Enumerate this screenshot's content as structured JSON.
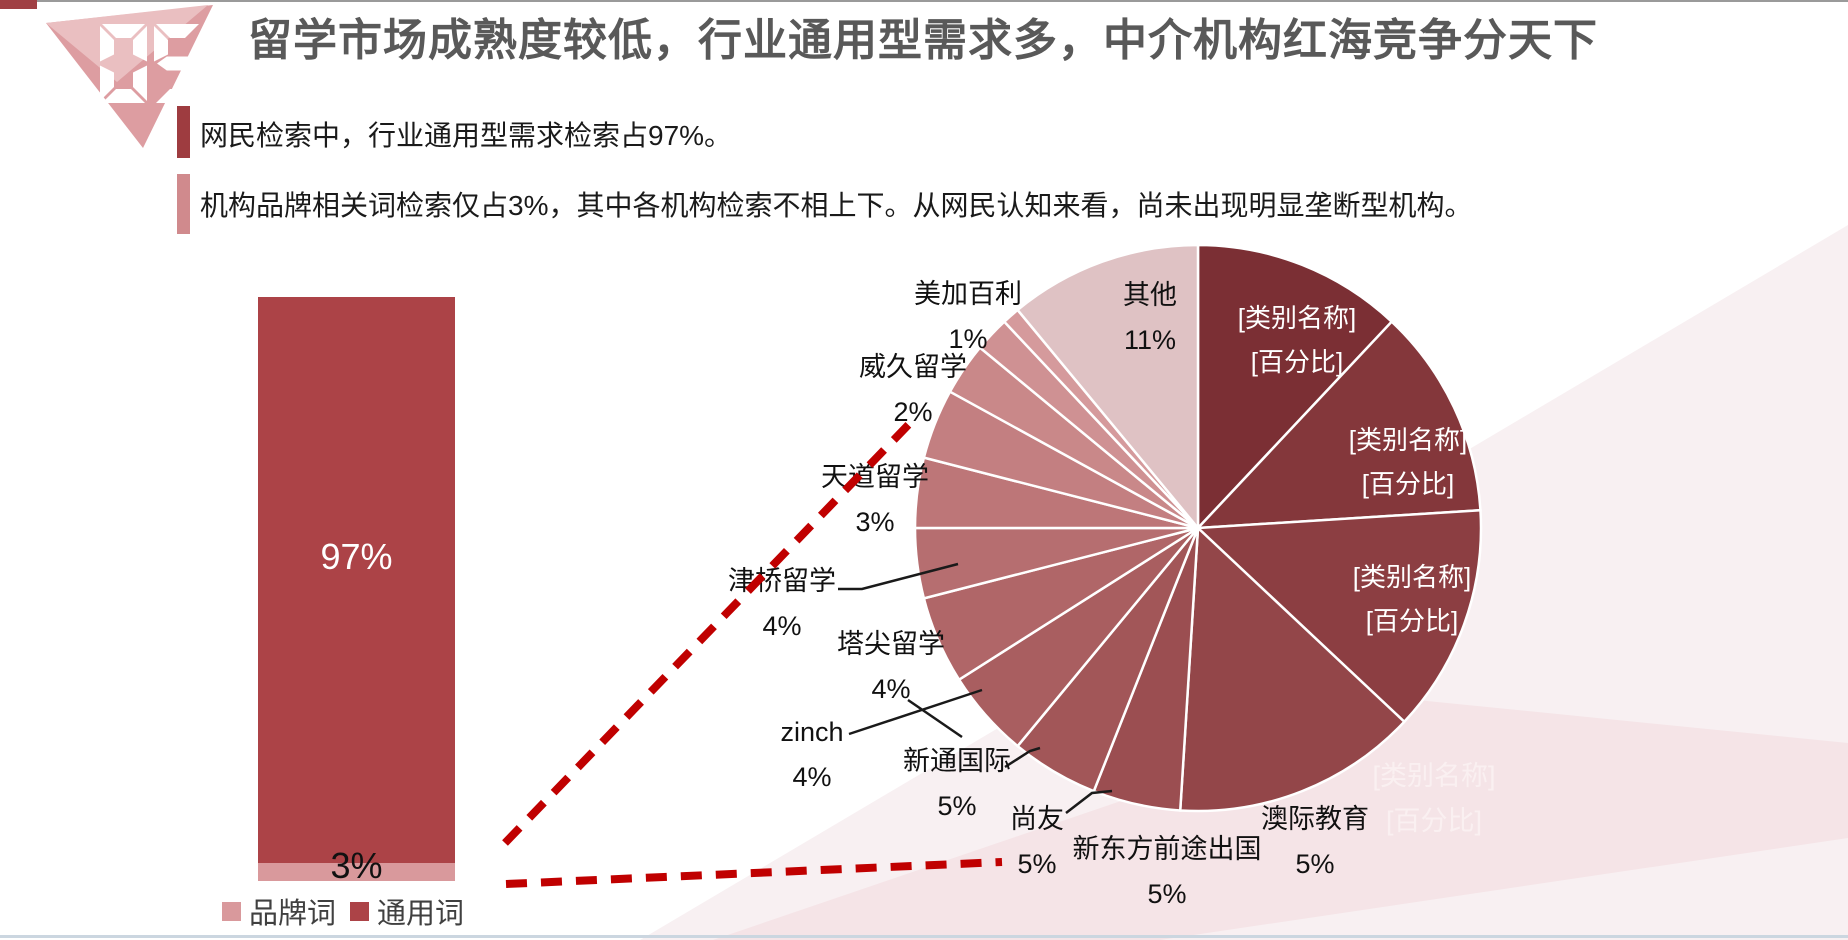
{
  "slide": {
    "number": "05",
    "title": "留学市场成熟度较低，行业通用型需求多，中介机构红海竞争分天下",
    "bullets": [
      {
        "text": "网民检索中，行业通用型需求检索占97%。"
      },
      {
        "text": "机构品牌相关词检索仅占3%，其中各机构检索不相上下。从网民认知来看，尚未出现明显垄断型机构。"
      }
    ]
  },
  "colors": {
    "top_border": "#9a9a9a",
    "corner_accent": "#a04044",
    "bottom_border": "#cbd6e0",
    "title_text": "#595959",
    "bullet_marker_1": "#9e3c40",
    "bullet_marker_2": "#d08a8d",
    "gem_body": "#dd9da1",
    "gem_facet": "#eabfc1",
    "gem_digits": "#ffffff",
    "callout_dash": "#c00000",
    "leader_line": "#1a1a1a",
    "bg_triangle_1": "#f8f0f2",
    "bg_triangle_2": "#f5e4e7",
    "faint_label_text": "#faf0f1"
  },
  "chart_data": [
    {
      "type": "bar",
      "title": "",
      "stacked": true,
      "categories": [
        ""
      ],
      "ylim": [
        0,
        100
      ],
      "grid": false,
      "legend_position": "bottom",
      "series": [
        {
          "name": "通用词",
          "values": [
            97
          ],
          "label": "97%",
          "color": "#ac4347"
        },
        {
          "name": "品牌词",
          "values": [
            3
          ],
          "label": "3%",
          "color": "#d9999c"
        }
      ],
      "legend": [
        {
          "label": "品牌词",
          "color": "#d9999c"
        },
        {
          "label": "通用词",
          "color": "#ac4347"
        }
      ]
    },
    {
      "type": "pie",
      "direction": "clockwise",
      "start_angle_deg": 0,
      "slices": [
        {
          "label": "[类别名称]",
          "value_label": "[百分比]",
          "value": 12,
          "color": "#7b2f34",
          "label_style": "inside"
        },
        {
          "label": "[类别名称]",
          "value_label": "[百分比]",
          "value": 12,
          "color": "#84373b",
          "label_style": "inside"
        },
        {
          "label": "[类别名称]",
          "value_label": "[百分比]",
          "value": 13,
          "color": "#8c3e42",
          "label_style": "inside"
        },
        {
          "label": "[类别名称]",
          "value_label": "[百分比]",
          "value": 14,
          "color": "#934649",
          "label_style": "faint"
        },
        {
          "label": "澳际教育",
          "value_label": "5%",
          "value": 5,
          "color": "#9b4e51",
          "label_style": "outside"
        },
        {
          "label": "新东方前途出国",
          "value_label": "5%",
          "value": 5,
          "color": "#a25658",
          "label_style": "outside"
        },
        {
          "label": "尚友",
          "value_label": "5%",
          "value": 5,
          "color": "#a95e60",
          "label_style": "outside"
        },
        {
          "label": "新通国际",
          "value_label": "5%",
          "value": 5,
          "color": "#b06668",
          "label_style": "outside"
        },
        {
          "label": "zinch",
          "value_label": "4%",
          "value": 4,
          "color": "#b66e70",
          "label_style": "outside"
        },
        {
          "label": "塔尖留学",
          "value_label": "4%",
          "value": 4,
          "color": "#bd7678",
          "label_style": "outside"
        },
        {
          "label": "津桥留学",
          "value_label": "4%",
          "value": 4,
          "color": "#c37f81",
          "label_style": "outside"
        },
        {
          "label": "天道留学",
          "value_label": "3%",
          "value": 3,
          "color": "#c98889",
          "label_style": "outside"
        },
        {
          "label": "威久留学",
          "value_label": "2%",
          "value": 2,
          "color": "#cf9193",
          "label_style": "outside"
        },
        {
          "label": "美加百利",
          "value_label": "1%",
          "value": 1,
          "color": "#d59a9c",
          "label_style": "outside"
        },
        {
          "label": "其他",
          "value_label": "11%",
          "value": 11,
          "color": "#dfc2c4",
          "label_style": "outside"
        }
      ]
    }
  ]
}
